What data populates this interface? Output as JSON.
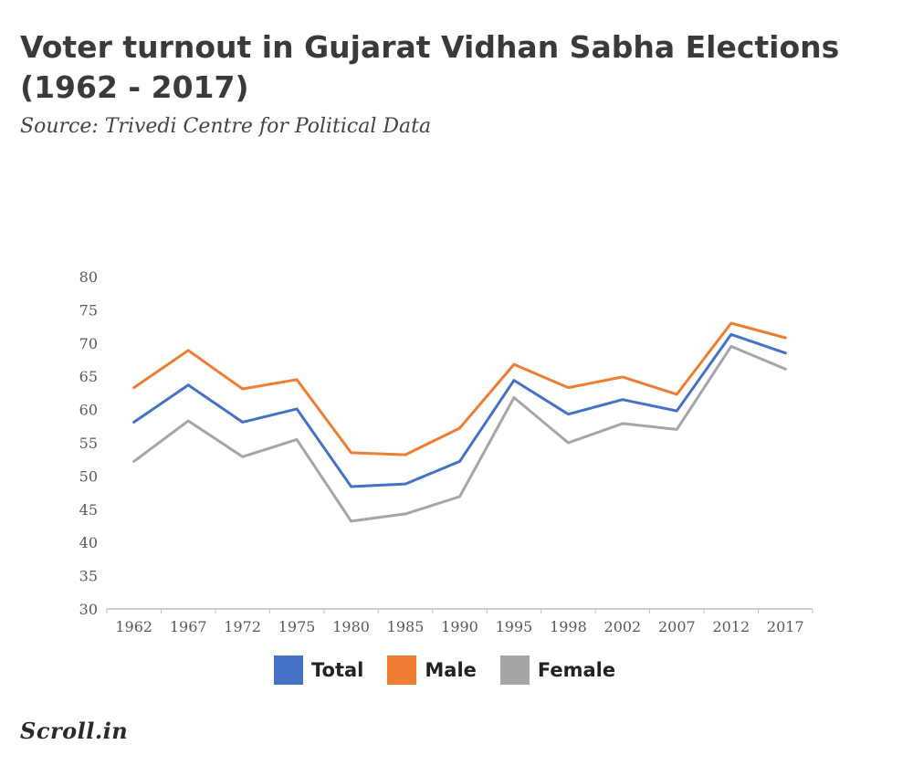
{
  "title": "Voter turnout in Gujarat Vidhan Sabha Elections (1962 - 2017)",
  "subtitle": "Source: Trivedi Centre for Political Data",
  "logo_text": "Scroll.in",
  "colors": {
    "total": "#4472c4",
    "male": "#ed7d31",
    "female": "#a5a5a5"
  },
  "chart_data": {
    "type": "line",
    "title": "Voter turnout in Gujarat Vidhan Sabha Elections (1962 - 2017)",
    "xlabel": "",
    "ylabel": "",
    "ylim": [
      30,
      80
    ],
    "yticks": [
      30,
      35,
      40,
      45,
      50,
      55,
      60,
      65,
      70,
      75,
      80
    ],
    "grid": false,
    "legend_position": "bottom",
    "categories": [
      "1962",
      "1967",
      "1972",
      "1975",
      "1980",
      "1985",
      "1990",
      "1995",
      "1998",
      "2002",
      "2007",
      "2012",
      "2017"
    ],
    "series": [
      {
        "name": "Total",
        "values": [
          58.1,
          63.7,
          58.1,
          60.1,
          48.4,
          48.8,
          52.2,
          64.4,
          59.3,
          61.5,
          59.8,
          71.3,
          68.5
        ]
      },
      {
        "name": "Male",
        "values": [
          63.3,
          68.9,
          63.1,
          64.5,
          53.5,
          53.2,
          57.2,
          66.8,
          63.3,
          64.9,
          62.3,
          73.0,
          70.8
        ]
      },
      {
        "name": "Female",
        "values": [
          52.2,
          58.3,
          52.9,
          55.5,
          43.2,
          44.3,
          46.9,
          61.8,
          55.0,
          57.9,
          57.0,
          69.5,
          66.1
        ]
      }
    ]
  }
}
